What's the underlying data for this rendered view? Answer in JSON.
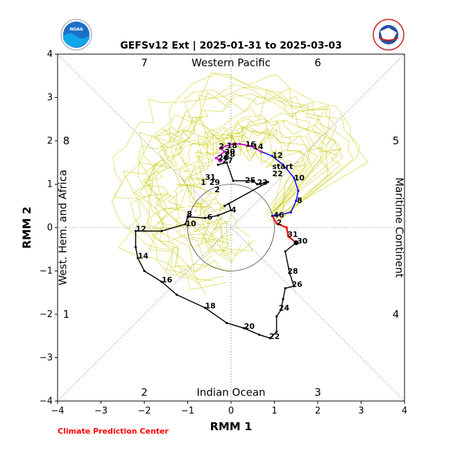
{
  "colors": {
    "ensemble": "#c8c800",
    "obs": "#000000",
    "fc_blue": "#0000ff",
    "fc_magenta": "#cc00cc",
    "fc_red": "#ff0000",
    "credit": "#ff0000"
  },
  "icons": {
    "left_logo": "noaa-logo",
    "right_logo": "nws-logo"
  },
  "logos": {
    "noaa_text": "NOAA",
    "nws_text": "NATIONAL WEATHER SERVICE"
  },
  "credit": "Climate Prediction Center",
  "chart_data": {
    "type": "scatter",
    "title": "GEFSv12 Ext | 2025-01-31 to 2025-03-03",
    "xlabel": "RMM 1",
    "ylabel": "RMM 2",
    "xlim": [
      -4,
      4
    ],
    "ylim": [
      -4,
      4
    ],
    "xticks": [
      -4,
      -3,
      -2,
      -1,
      0,
      1,
      2,
      3,
      4
    ],
    "yticks": [
      -4,
      -3,
      -2,
      -1,
      0,
      1,
      2,
      3,
      4
    ],
    "unit_circle_radius": 1,
    "phases": [
      {
        "label": "1",
        "x": -3.8,
        "y": -2.0
      },
      {
        "label": "2",
        "x": -2.0,
        "y": -3.8
      },
      {
        "label": "3",
        "x": 2.0,
        "y": -3.8
      },
      {
        "label": "4",
        "x": 3.8,
        "y": -2.0
      },
      {
        "label": "5",
        "x": 3.8,
        "y": 2.0
      },
      {
        "label": "6",
        "x": 2.0,
        "y": 3.8
      },
      {
        "label": "7",
        "x": -2.0,
        "y": 3.8
      },
      {
        "label": "8",
        "x": -3.8,
        "y": 2.0
      }
    ],
    "regions": {
      "top": "Western Pacific",
      "bottom": "Indian Ocean",
      "left": "West. Hem. and Africa",
      "right": "Maritime Continent"
    },
    "start_label": "start",
    "observed": [
      [
        -0.3,
        1.45
      ],
      [
        -0.1,
        1.5
      ],
      [
        0.05,
        1.08
      ],
      [
        0.5,
        1.08
      ],
      [
        0.6,
        1.0
      ],
      [
        0.85,
        1.05
      ],
      [
        -0.15,
        0.5
      ],
      [
        -0.05,
        0.55
      ],
      [
        0.0,
        0.4
      ],
      [
        -0.3,
        0.28
      ],
      [
        -0.6,
        0.22
      ],
      [
        -1.0,
        0.25
      ],
      [
        -1.05,
        0.08
      ],
      [
        -1.6,
        -0.08
      ],
      [
        -2.2,
        -0.08
      ],
      [
        -2.2,
        -0.45
      ],
      [
        -2.15,
        -0.7
      ],
      [
        -2.0,
        -1.0
      ],
      [
        -1.6,
        -1.25
      ],
      [
        -1.25,
        -1.55
      ],
      [
        -0.6,
        -1.85
      ],
      [
        -0.1,
        -2.2
      ],
      [
        0.3,
        -2.32
      ],
      [
        0.65,
        -2.47
      ],
      [
        0.9,
        -2.55
      ],
      [
        1.05,
        -2.4
      ],
      [
        1.05,
        -2.05
      ],
      [
        1.15,
        -1.9
      ],
      [
        1.2,
        -1.65
      ],
      [
        1.25,
        -1.4
      ],
      [
        1.45,
        -1.35
      ],
      [
        1.35,
        -1.05
      ],
      [
        1.25,
        -0.55
      ],
      [
        1.5,
        -0.35
      ]
    ],
    "observed_labels": [
      {
        "text": "31",
        "x": -0.6,
        "y": 1.17
      },
      {
        "text": "29",
        "x": -0.5,
        "y": 1.05
      },
      {
        "text": "1",
        "x": -0.7,
        "y": 1.05
      },
      {
        "text": "2",
        "x": -0.38,
        "y": 0.88
      },
      {
        "text": "4",
        "x": 0.0,
        "y": 0.42
      },
      {
        "text": "6",
        "x": -0.55,
        "y": 0.25
      },
      {
        "text": "8",
        "x": -1.02,
        "y": 0.32
      },
      {
        "text": "10",
        "x": -1.05,
        "y": 0.1
      },
      {
        "text": "12",
        "x": -2.2,
        "y": -0.02
      },
      {
        "text": "14",
        "x": -2.15,
        "y": -0.65
      },
      {
        "text": "16",
        "x": -1.6,
        "y": -1.2
      },
      {
        "text": "18",
        "x": -0.6,
        "y": -1.8
      },
      {
        "text": "20",
        "x": 0.3,
        "y": -2.27
      },
      {
        "text": "22",
        "x": 0.88,
        "y": -2.5
      },
      {
        "text": "24",
        "x": 1.1,
        "y": -1.85
      },
      {
        "text": "26",
        "x": 1.4,
        "y": -1.3
      },
      {
        "text": "28",
        "x": 1.3,
        "y": -1.0
      },
      {
        "text": "25",
        "x": 0.32,
        "y": 1.1
      },
      {
        "text": "23",
        "x": 0.6,
        "y": 1.05
      },
      {
        "text": "22",
        "x": 0.95,
        "y": 1.25
      },
      {
        "text": "27",
        "x": -0.2,
        "y": 1.55
      },
      {
        "text": "28",
        "x": -0.15,
        "y": 1.7
      },
      {
        "text": "26",
        "x": -0.3,
        "y": 1.62
      },
      {
        "text": "2",
        "x": -0.28,
        "y": 1.88
      },
      {
        "text": "18",
        "x": -0.1,
        "y": 1.9
      },
      {
        "text": "20",
        "x": -0.15,
        "y": 1.75
      },
      {
        "text": "16",
        "x": 0.33,
        "y": 1.93
      },
      {
        "text": "14",
        "x": 0.5,
        "y": 1.87
      },
      {
        "text": "12",
        "x": 0.95,
        "y": 1.67
      },
      {
        "text": "10",
        "x": 1.45,
        "y": 1.15
      },
      {
        "text": "8",
        "x": 1.52,
        "y": 0.63
      },
      {
        "text": "6",
        "x": 1.1,
        "y": 0.3
      },
      {
        "text": "4",
        "x": 0.98,
        "y": 0.3
      },
      {
        "text": "2",
        "x": 1.05,
        "y": 0.12
      },
      {
        "text": "31",
        "x": 1.3,
        "y": -0.15
      },
      {
        "text": "30",
        "x": 1.52,
        "y": -0.3
      }
    ],
    "forecast_red": [
      [
        1.5,
        -0.35
      ],
      [
        1.32,
        -0.2
      ],
      [
        1.28,
        0.0
      ],
      [
        1.05,
        0.1
      ],
      [
        0.95,
        0.27
      ]
    ],
    "forecast_blue": [
      [
        0.95,
        0.27
      ],
      [
        1.12,
        0.3
      ],
      [
        1.38,
        0.35
      ],
      [
        1.5,
        0.62
      ],
      [
        1.55,
        0.85
      ],
      [
        1.45,
        1.15
      ],
      [
        1.2,
        1.45
      ],
      [
        0.95,
        1.65
      ],
      [
        0.7,
        1.75
      ]
    ],
    "forecast_magenta": [
      [
        0.7,
        1.75
      ],
      [
        0.45,
        1.88
      ],
      [
        0.2,
        1.93
      ],
      [
        0.0,
        1.92
      ],
      [
        -0.25,
        1.83
      ],
      [
        -0.15,
        1.75
      ],
      [
        -0.35,
        1.6
      ],
      [
        -0.25,
        1.55
      ]
    ],
    "ensemble_members": 20
  }
}
